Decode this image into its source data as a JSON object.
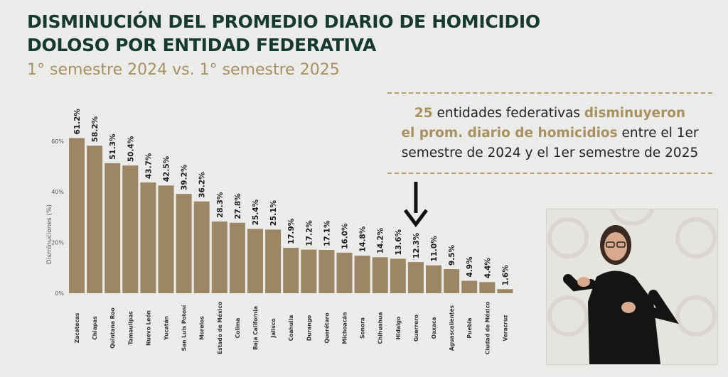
{
  "header": {
    "title_line1": "DISMINUCIÓN DEL PROMEDIO DIARIO DE HOMICIDIO",
    "title_line2": "DOLOSO POR ENTIDAD FEDERATIVA",
    "subtitle": "1° semestre 2024 vs. 1° semestre 2025"
  },
  "callout": {
    "count": "25",
    "part1": " entidades federativas ",
    "hl1": "disminuyeron",
    "hl2": "el prom. diario de homicidios",
    "part2": " entre el 1er",
    "line3": "semestre de 2024 y el 1er semestre de 2025"
  },
  "colors": {
    "bar": "#9c8665",
    "title": "#163a2c",
    "accent": "#a8905f"
  },
  "chart_data": {
    "type": "bar",
    "ylabel": "Disminuciones (%)",
    "ylim": [
      0,
      70
    ],
    "yticks": [
      0,
      20,
      40,
      60
    ],
    "ytick_labels": [
      "0%",
      "20%",
      "40%",
      "60%"
    ],
    "categories": [
      "Zacatecas",
      "Chiapas",
      "Quintana Roo",
      "Tamaulipas",
      "Nuevo León",
      "Yucatán",
      "San Luis Potosí",
      "Morelos",
      "Estado de México",
      "Colima",
      "Baja California",
      "Jalisco",
      "Coahuila",
      "Durango",
      "Querétaro",
      "Michoacán",
      "Sonora",
      "Chihuahua",
      "Hidalgo",
      "Guerrero",
      "Oaxaca",
      "Aguascalientes",
      "Puebla",
      "Ciudad de México",
      "Veracruz"
    ],
    "values": [
      61.2,
      58.2,
      51.3,
      50.4,
      43.7,
      42.5,
      39.2,
      36.2,
      28.3,
      27.8,
      25.4,
      25.1,
      17.9,
      17.2,
      17.1,
      16.0,
      14.8,
      14.2,
      13.6,
      12.3,
      11.0,
      9.5,
      4.9,
      4.4,
      1.6
    ],
    "labels": [
      "61.2%",
      "58.2%",
      "51.3%",
      "50.4%",
      "43.7%",
      "42.5%",
      "39.2%",
      "36.2%",
      "28.3%",
      "27.8%",
      "25.4%",
      "25.1%",
      "17.9%",
      "17.2%",
      "17.1%",
      "16.0%",
      "14.8%",
      "14.2%",
      "13.6%",
      "12.3%",
      "11.0%",
      "9.5%",
      "4.9%",
      "4.4%",
      "1.6%"
    ],
    "annotation": {
      "type": "arrow-down",
      "category": "Guerrero"
    },
    "grid": false,
    "legend": "none"
  }
}
